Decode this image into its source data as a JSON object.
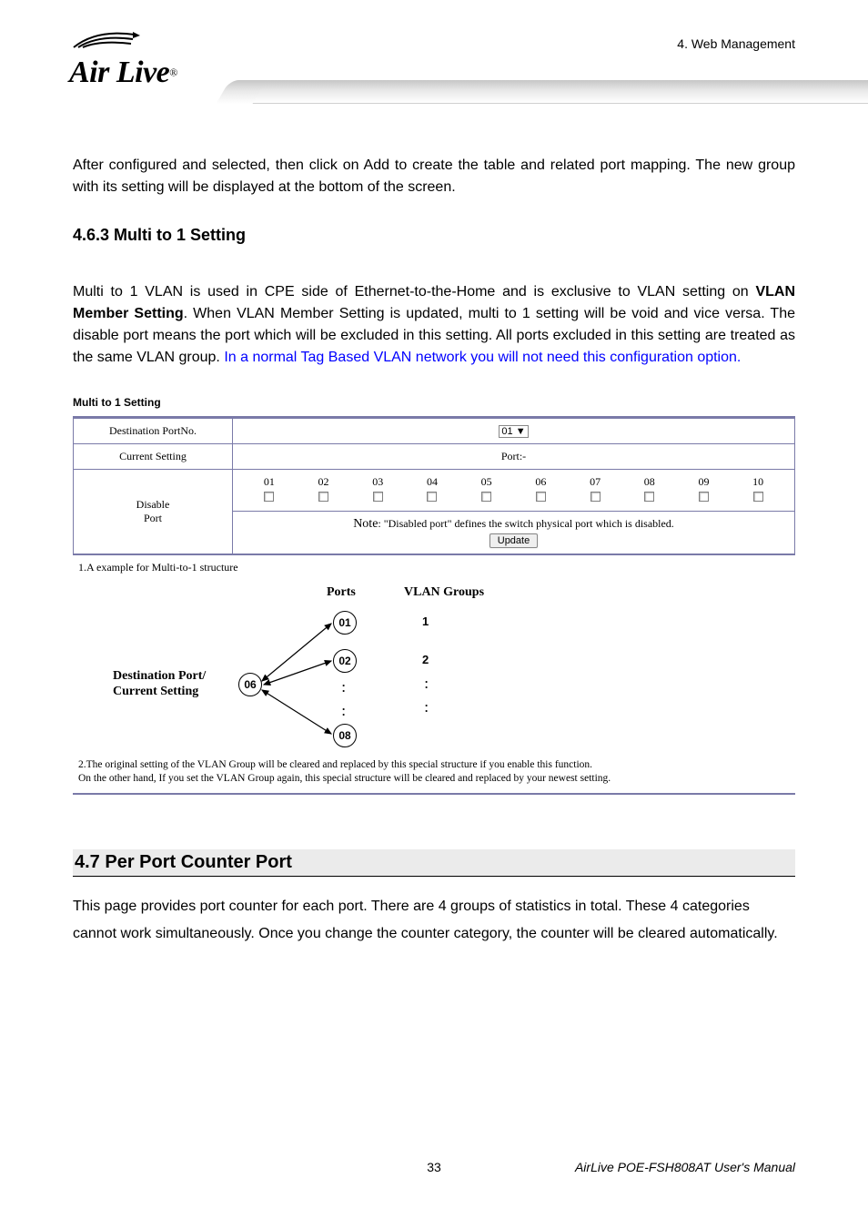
{
  "header": {
    "logo_text": "Air Live",
    "chapter": "4. Web Management"
  },
  "intro_para": "After configured and selected, then click on Add to create the table and related port mapping. The new group with its setting will be displayed at the bottom of the screen.",
  "section_463": {
    "heading": "4.6.3 Multi to 1 Setting",
    "body_black": "Multi to 1 VLAN is used in CPE side of Ethernet-to-the-Home and is exclusive to VLAN setting on ",
    "body_bold": "VLAN Member Setting",
    "body_black2": ". When VLAN Member Setting is updated, multi to 1 setting will be void and vice versa. The disable port means the port which will be excluded in this setting. All ports excluded in this setting are treated as the same VLAN group. ",
    "body_blue": "In a normal Tag Based VLAN network you will not need this configuration option."
  },
  "screenshot": {
    "title": "Multi to 1 Setting",
    "row1_label": "Destination PortNo.",
    "row1_select": "01",
    "row2_label": "Current Setting",
    "row2_value": "Port:-",
    "row3_label_line1": "Disable",
    "row3_label_line2": "Port",
    "ports": [
      "01",
      "02",
      "03",
      "04",
      "05",
      "06",
      "07",
      "08",
      "09",
      "10"
    ],
    "note_prefix": "Note",
    "note_text": ": \"Disabled port\" defines the switch physical port which is disabled.",
    "update_btn": "Update",
    "example_line": "1.A example for Multi-to-1 structure",
    "ports_header": "Ports",
    "groups_header": "VLAN Groups",
    "dest_label_line1": "Destination Port/",
    "dest_label_line2": "Current Setting",
    "node_06": "06",
    "node_01": "01",
    "node_02": "02",
    "node_08": "08",
    "grp1": "1",
    "grp2": "2",
    "foot1": "2.The original setting of the VLAN Group will be cleared and replaced by this special structure if you enable this function.",
    "foot2": "On the other hand, If you set the VLAN Group again, this special structure will be cleared and replaced by your newest setting."
  },
  "section_47": {
    "heading": "4.7 Per Port Counter Port",
    "body": "This page provides port counter for each port. There are 4 groups of statistics in total. These 4 categories cannot work simultaneously. Once you change the counter category, the counter will be cleared automatically."
  },
  "footer": {
    "page": "33",
    "manual": "AirLive POE-FSH808AT User's Manual"
  },
  "colors": {
    "blue": "#0000ff",
    "body": "#000000",
    "table_border": "#7a7aa8",
    "heading_bg": "#ebebeb"
  }
}
